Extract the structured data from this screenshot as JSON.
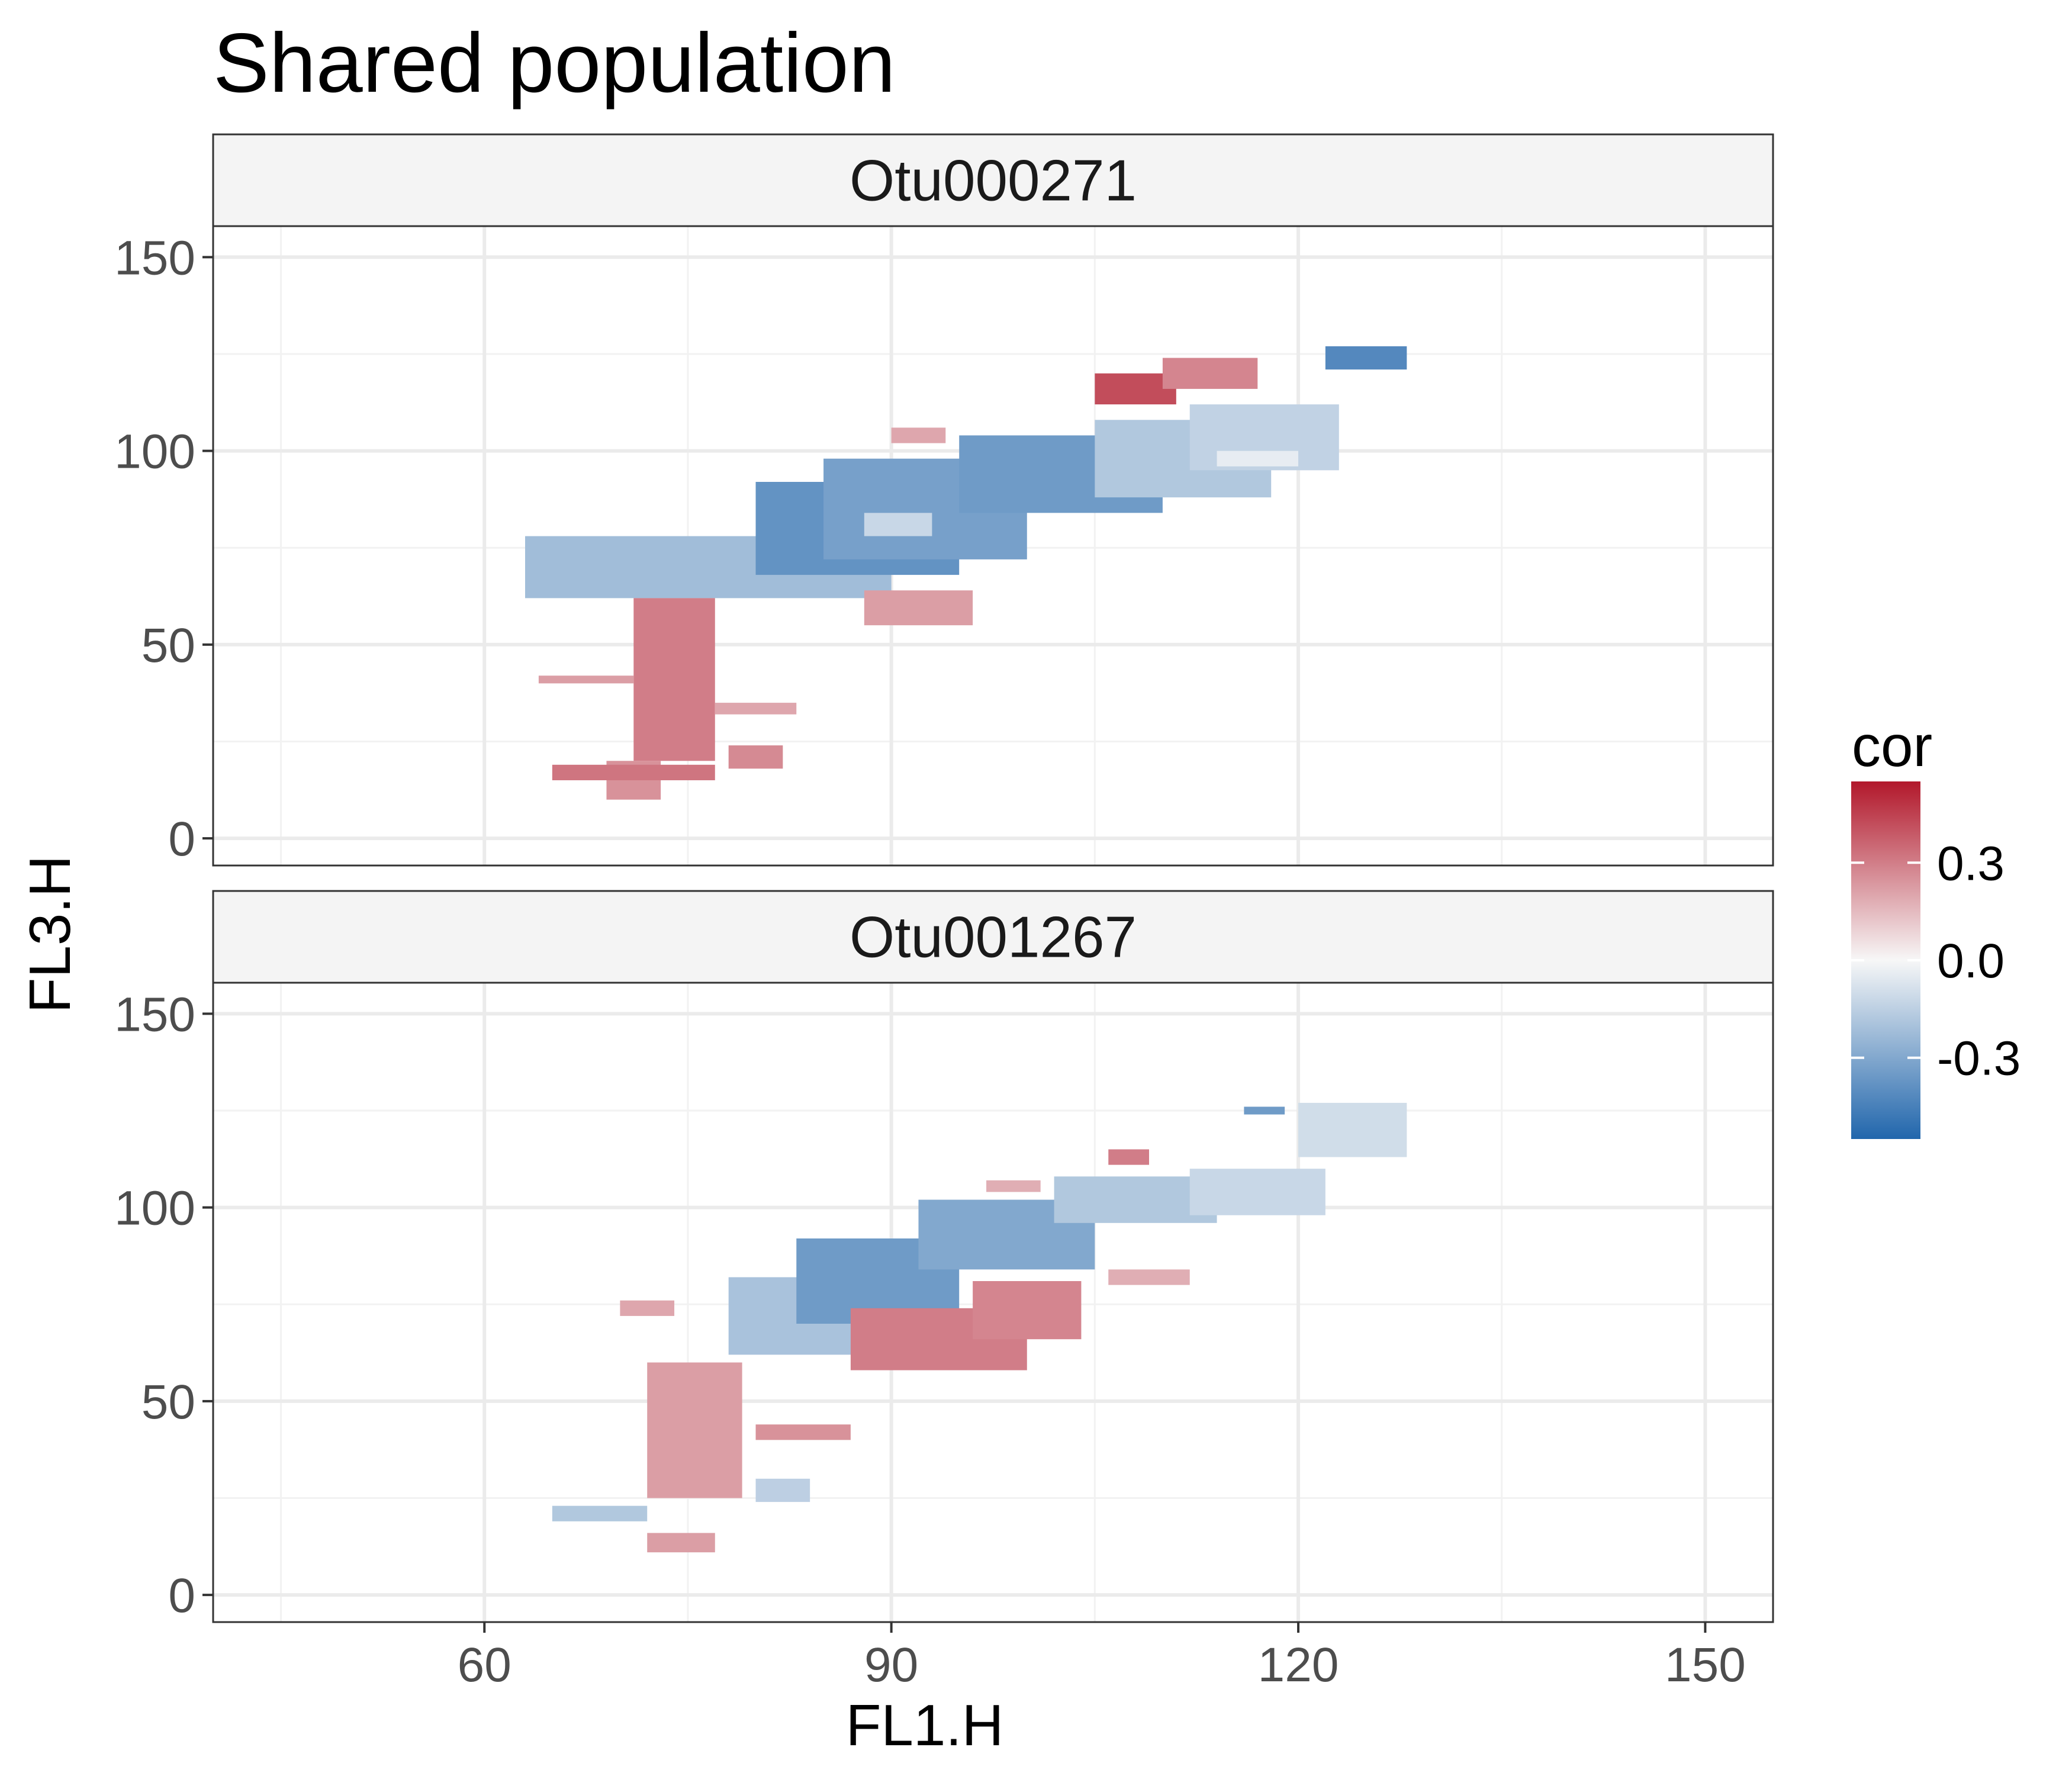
{
  "chart_data": {
    "type": "heatmap",
    "title": "Shared population",
    "xlabel": "FL1.H",
    "ylabel": "FL3.H",
    "xlim": [
      40,
      155
    ],
    "ylim": [
      -7,
      158
    ],
    "x_ticks": [
      60,
      90,
      120,
      150
    ],
    "y_ticks": [
      0,
      50,
      100,
      150
    ],
    "grid": true,
    "legend": {
      "title": "cor",
      "position": "right",
      "ticks": [
        0.3,
        0.0,
        -0.3
      ],
      "tick_labels": [
        "0.3",
        "0.0",
        "-0.3"
      ],
      "range": [
        -0.55,
        0.55
      ],
      "colors": {
        "low": "#2166ac",
        "mid": "#f7f7f7",
        "high": "#b2182b"
      }
    },
    "panels": [
      {
        "name": "Otu000271",
        "regions": [
          {
            "x": [
              63,
              90
            ],
            "y": [
              62,
              78
            ],
            "cor": -0.22
          },
          {
            "x": [
              80,
              95
            ],
            "y": [
              68,
              92
            ],
            "cor": -0.38
          },
          {
            "x": [
              85,
              100
            ],
            "y": [
              72,
              98
            ],
            "cor": -0.33
          },
          {
            "x": [
              88,
              93
            ],
            "y": [
              78,
              84
            ],
            "cor": -0.12
          },
          {
            "x": [
              95,
              110
            ],
            "y": [
              84,
              104
            ],
            "cor": -0.35
          },
          {
            "x": [
              105,
              118
            ],
            "y": [
              88,
              108
            ],
            "cor": -0.18
          },
          {
            "x": [
              112,
              123
            ],
            "y": [
              95,
              112
            ],
            "cor": -0.14
          },
          {
            "x": [
              114,
              120
            ],
            "y": [
              96,
              100
            ],
            "cor": -0.04
          },
          {
            "x": [
              105,
              111
            ],
            "y": [
              112,
              120
            ],
            "cor": 0.42
          },
          {
            "x": [
              110,
              117
            ],
            "y": [
              116,
              124
            ],
            "cor": 0.28
          },
          {
            "x": [
              122,
              128
            ],
            "y": [
              121,
              127
            ],
            "cor": -0.42
          },
          {
            "x": [
              90,
              94
            ],
            "y": [
              102,
              106
            ],
            "cor": 0.2
          },
          {
            "x": [
              88,
              96
            ],
            "y": [
              55,
              64
            ],
            "cor": 0.22
          },
          {
            "x": [
              71,
              77
            ],
            "y": [
              20,
              62
            ],
            "cor": 0.3
          },
          {
            "x": [
              69,
              73
            ],
            "y": [
              10,
              20
            ],
            "cor": 0.25
          },
          {
            "x": [
              65,
              77
            ],
            "y": [
              15,
              19
            ],
            "cor": 0.32
          },
          {
            "x": [
              78,
              82
            ],
            "y": [
              18,
              24
            ],
            "cor": 0.27
          },
          {
            "x": [
              64,
              71
            ],
            "y": [
              40,
              42
            ],
            "cor": 0.22
          },
          {
            "x": [
              77,
              83
            ],
            "y": [
              32,
              35
            ],
            "cor": 0.2
          }
        ]
      },
      {
        "name": "Otu001267",
        "regions": [
          {
            "x": [
              78,
              90
            ],
            "y": [
              62,
              82
            ],
            "cor": -0.2
          },
          {
            "x": [
              83,
              95
            ],
            "y": [
              70,
              92
            ],
            "cor": -0.35
          },
          {
            "x": [
              92,
              105
            ],
            "y": [
              84,
              102
            ],
            "cor": -0.3
          },
          {
            "x": [
              102,
              114
            ],
            "y": [
              96,
              108
            ],
            "cor": -0.18
          },
          {
            "x": [
              112,
              122
            ],
            "y": [
              98,
              110
            ],
            "cor": -0.12
          },
          {
            "x": [
              116,
              119
            ],
            "y": [
              124,
              126
            ],
            "cor": -0.35
          },
          {
            "x": [
              120,
              128
            ],
            "y": [
              113,
              127
            ],
            "cor": -0.1
          },
          {
            "x": [
              87,
              100
            ],
            "y": [
              58,
              74
            ],
            "cor": 0.3
          },
          {
            "x": [
              96,
              104
            ],
            "y": [
              66,
              81
            ],
            "cor": 0.28
          },
          {
            "x": [
              106,
              109
            ],
            "y": [
              111,
              115
            ],
            "cor": 0.3
          },
          {
            "x": [
              97,
              101
            ],
            "y": [
              104,
              107
            ],
            "cor": 0.18
          },
          {
            "x": [
              72,
              79
            ],
            "y": [
              25,
              60
            ],
            "cor": 0.22
          },
          {
            "x": [
              80,
              87
            ],
            "y": [
              40,
              44
            ],
            "cor": 0.25
          },
          {
            "x": [
              72,
              77
            ],
            "y": [
              11,
              16
            ],
            "cor": 0.22
          },
          {
            "x": [
              65,
              72
            ],
            "y": [
              19,
              23
            ],
            "cor": -0.18
          },
          {
            "x": [
              80,
              84
            ],
            "y": [
              24,
              30
            ],
            "cor": -0.15
          },
          {
            "x": [
              70,
              74
            ],
            "y": [
              72,
              76
            ],
            "cor": 0.2
          },
          {
            "x": [
              106,
              112
            ],
            "y": [
              80,
              84
            ],
            "cor": 0.18
          }
        ]
      }
    ]
  }
}
